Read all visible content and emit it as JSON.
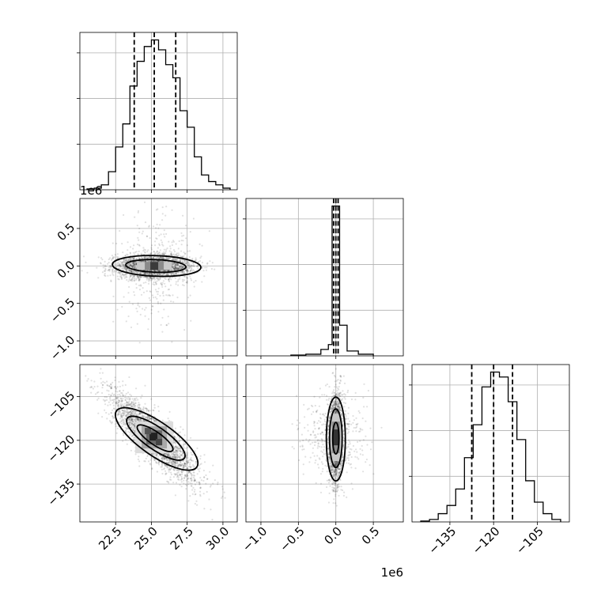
{
  "chart_data": [
    {
      "type": "histogram",
      "panel": "x0",
      "xlim": [
        20.0,
        31.0
      ],
      "bins": [
        [
          20.5,
          21.0,
          0.005
        ],
        [
          21.0,
          21.5,
          0.01
        ],
        [
          21.5,
          22.0,
          0.03
        ],
        [
          22.0,
          22.5,
          0.11
        ],
        [
          22.5,
          23.0,
          0.26
        ],
        [
          23.0,
          23.5,
          0.4
        ],
        [
          23.5,
          24.0,
          0.63
        ],
        [
          24.0,
          24.5,
          0.78
        ],
        [
          24.5,
          25.0,
          0.87
        ],
        [
          25.0,
          25.5,
          0.91
        ],
        [
          25.5,
          26.0,
          0.85
        ],
        [
          26.0,
          26.5,
          0.76
        ],
        [
          26.5,
          27.0,
          0.68
        ],
        [
          27.0,
          27.5,
          0.48
        ],
        [
          27.5,
          28.0,
          0.38
        ],
        [
          28.0,
          28.5,
          0.2
        ],
        [
          28.5,
          29.0,
          0.09
        ],
        [
          29.0,
          29.5,
          0.05
        ],
        [
          29.5,
          30.0,
          0.03
        ],
        [
          30.0,
          30.5,
          0.01
        ]
      ],
      "quantiles": [
        23.8,
        25.2,
        26.7
      ],
      "y_ticks": 3
    },
    {
      "type": "scatter-contour",
      "panel": "x0 vs x1",
      "xlim": [
        20.0,
        31.0
      ],
      "ylim": [
        -1.2,
        0.9
      ],
      "y_ticks": [
        0.5,
        0.0,
        -0.5,
        -1.0
      ],
      "y_tick_labels": [
        "0.5",
        "0.0",
        "−0.5",
        "−1.0"
      ],
      "y_offset_label": "1e6",
      "center": [
        25.2,
        0.0
      ],
      "contours": [
        [
          2.9,
          0.08
        ],
        [
          2.3,
          0.055
        ],
        [
          1.2,
          0.03
        ]
      ]
    },
    {
      "type": "histogram",
      "panel": "x1",
      "xlim": [
        -1.2,
        0.9
      ],
      "bins": [
        [
          -0.6,
          -0.4,
          0.005
        ],
        [
          -0.4,
          -0.2,
          0.01
        ],
        [
          -0.2,
          -0.1,
          0.04
        ],
        [
          -0.1,
          -0.05,
          0.07
        ],
        [
          -0.05,
          0.05,
          0.93
        ],
        [
          0.05,
          0.15,
          0.19
        ],
        [
          0.15,
          0.3,
          0.03
        ],
        [
          0.3,
          0.5,
          0.01
        ]
      ],
      "quantiles": [
        -0.03,
        0.0,
        0.03
      ],
      "y_ticks": 3
    },
    {
      "type": "scatter-contour",
      "panel": "x0 vs x2",
      "xlim": [
        20.0,
        31.0
      ],
      "ylim": [
        -148.0,
        -94.0
      ],
      "x_ticks": [
        22.5,
        25.0,
        27.5,
        30.0
      ],
      "x_tick_labels": [
        "22.5",
        "25.0",
        "27.5",
        "30.0"
      ],
      "y_ticks": [
        -105,
        -120,
        -135
      ],
      "y_tick_labels": [
        "−105",
        "−120",
        "−135"
      ],
      "center": [
        25.2,
        -119.0
      ]
    },
    {
      "type": "scatter-contour",
      "panel": "x1 vs x2",
      "xlim": [
        -1.2,
        0.9
      ],
      "ylim": [
        -148.0,
        -94.0
      ],
      "x_ticks": [
        -1.0,
        -0.5,
        0.0,
        0.5
      ],
      "x_tick_labels": [
        "−1.0",
        "−0.5",
        "0.0",
        "0.5"
      ],
      "x_offset_label": "1e6",
      "center": [
        0.0,
        -119.0
      ]
    },
    {
      "type": "histogram",
      "panel": "x2",
      "xlim": [
        -148.0,
        -94.0
      ],
      "x_ticks": [
        -135,
        -120,
        -105
      ],
      "x_tick_labels": [
        "−135",
        "−120",
        "−105"
      ],
      "bins": [
        [
          -145.0,
          -142.0,
          0.005
        ],
        [
          -142.0,
          -139.0,
          0.015
        ],
        [
          -139.0,
          -136.0,
          0.05
        ],
        [
          -136.0,
          -133.0,
          0.1
        ],
        [
          -133.0,
          -130.0,
          0.2
        ],
        [
          -130.0,
          -127.0,
          0.39
        ],
        [
          -127.0,
          -124.0,
          0.59
        ],
        [
          -124.0,
          -121.0,
          0.82
        ],
        [
          -121.0,
          -118.0,
          0.91
        ],
        [
          -118.0,
          -115.0,
          0.88
        ],
        [
          -115.0,
          -112.0,
          0.73
        ],
        [
          -112.0,
          -109.0,
          0.5
        ],
        [
          -109.0,
          -106.0,
          0.25
        ],
        [
          -106.0,
          -103.0,
          0.12
        ],
        [
          -103.0,
          -100.0,
          0.05
        ],
        [
          -100.0,
          -97.0,
          0.015
        ]
      ],
      "quantiles": [
        -127.5,
        -120.0,
        -113.5
      ],
      "y_ticks": 3
    }
  ]
}
